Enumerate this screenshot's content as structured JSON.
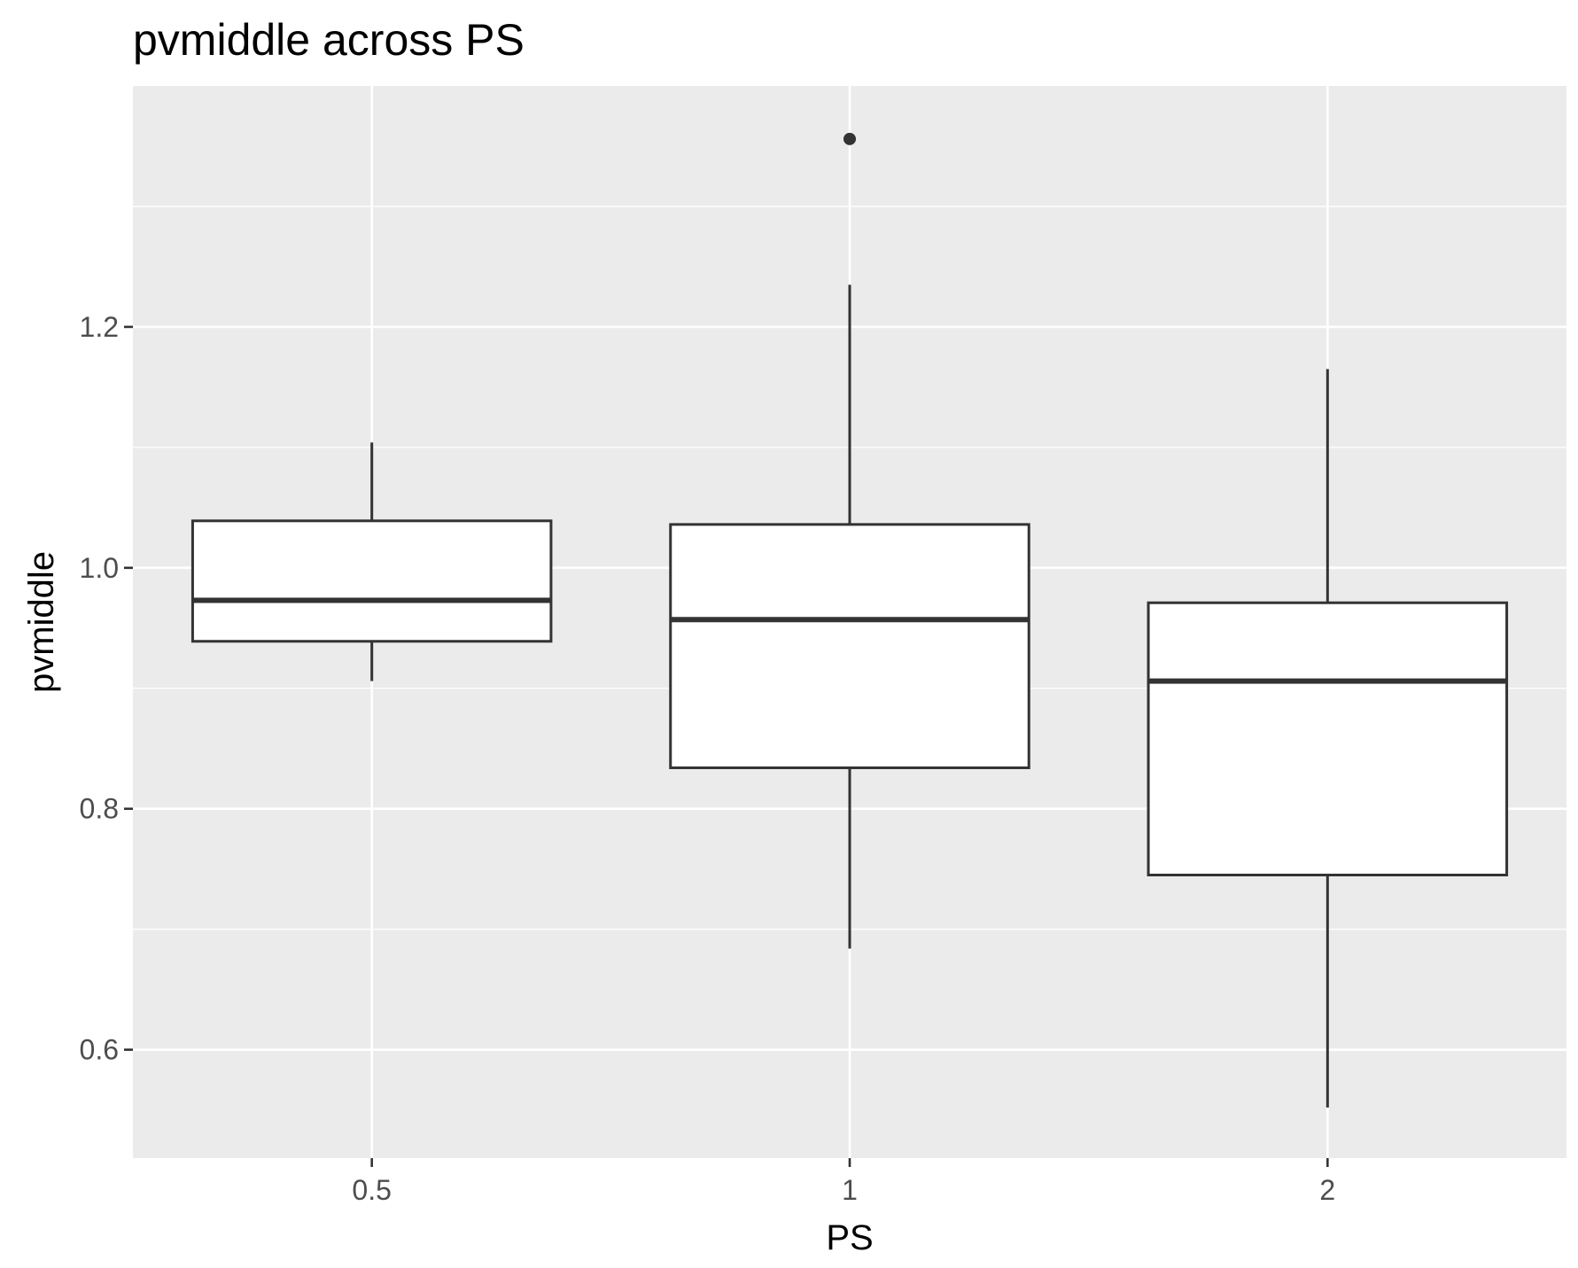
{
  "chart_data": {
    "type": "box",
    "title": "pvmiddle across PS",
    "xlabel": "PS",
    "ylabel": "pvmiddle",
    "categories": [
      "0.5",
      "1",
      "2"
    ],
    "ylim": [
      0.51,
      1.4
    ],
    "yticks": [
      0.6,
      0.8,
      1.0,
      1.2
    ],
    "ytick_labels": [
      "0.6",
      "0.8",
      "1.0",
      "1.2"
    ],
    "grid": true,
    "legend": "none",
    "colors": {
      "panel": "#ebebeb",
      "grid_major": "#ffffff",
      "box_fill": "#ffffff",
      "box_stroke": "#333333",
      "tick_text": "#4d4d4d",
      "tick_mark": "#333333"
    },
    "boxes": [
      {
        "category": "0.5",
        "whisker_low": 0.906,
        "q1": 0.939,
        "median": 0.973,
        "q3": 1.039,
        "whisker_high": 1.104,
        "outliers": []
      },
      {
        "category": "1",
        "whisker_low": 0.684,
        "q1": 0.834,
        "median": 0.957,
        "q3": 1.036,
        "whisker_high": 1.235,
        "outliers": [
          1.356
        ]
      },
      {
        "category": "2",
        "whisker_low": 0.552,
        "q1": 0.745,
        "median": 0.906,
        "q3": 0.971,
        "whisker_high": 1.165,
        "outliers": []
      }
    ]
  }
}
